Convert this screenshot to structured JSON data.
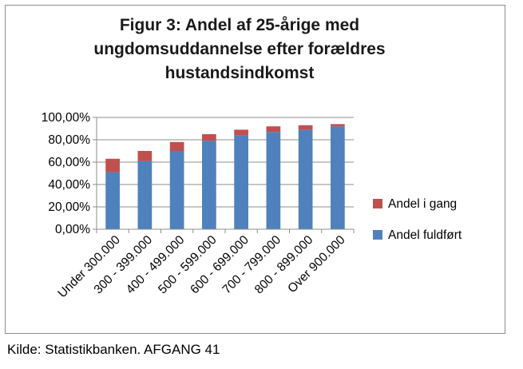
{
  "chart_data": {
    "type": "bar",
    "stacked": true,
    "title": [
      "Figur 3: Andel af 25-årige med",
      "ungdomsuddannelse efter forældres",
      "hustandsindkomst"
    ],
    "categories": [
      "Under 300.000",
      "300 - 399.000",
      "400 - 499.000",
      "500 - 599.000",
      "600 - 699.000",
      "700 - 799.000",
      "800 - 899.000",
      "Over 900.000"
    ],
    "series": [
      {
        "name": "Andel fuldført",
        "color": "#4f81bd",
        "values": [
          51,
          61,
          70,
          79,
          84,
          87,
          89,
          92
        ]
      },
      {
        "name": "Andel i gang",
        "color": "#c0504d",
        "values": [
          12,
          9,
          8,
          6,
          5,
          5,
          4,
          2
        ]
      }
    ],
    "ylim": [
      0,
      100
    ],
    "yticks": [
      "0,00%",
      "20,00%",
      "40,00%",
      "60,00%",
      "80,00%",
      "100,00%"
    ],
    "grid": true,
    "legend_position": "right"
  },
  "source_note": "Kilde: Statistikbanken. AFGANG 41"
}
